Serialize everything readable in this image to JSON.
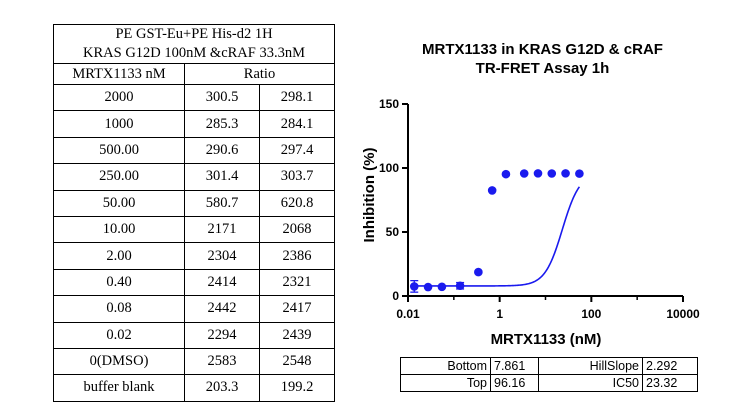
{
  "table": {
    "title_line1": "PE GST-Eu+PE His-d2 1H",
    "title_line2": "KRAS G12D 100nM &cRAF 33.3nM",
    "col_conc_header": "MRTX1133 nM",
    "col_ratio_header": "Ratio",
    "rows": [
      {
        "conc": "2000",
        "r1": "300.5",
        "r2": "298.1"
      },
      {
        "conc": "1000",
        "r1": "285.3",
        "r2": "284.1"
      },
      {
        "conc": "500.00",
        "r1": "290.6",
        "r2": "297.4"
      },
      {
        "conc": "250.00",
        "r1": "301.4",
        "r2": "303.7"
      },
      {
        "conc": "50.00",
        "r1": "580.7",
        "r2": "620.8"
      },
      {
        "conc": "10.00",
        "r1": "2171",
        "r2": "2068"
      },
      {
        "conc": "2.00",
        "r1": "2304",
        "r2": "2386"
      },
      {
        "conc": "0.40",
        "r1": "2414",
        "r2": "2321"
      },
      {
        "conc": "0.08",
        "r1": "2442",
        "r2": "2417"
      },
      {
        "conc": "0.02",
        "r1": "2294",
        "r2": "2439"
      },
      {
        "conc": "0(DMSO)",
        "r1": "2583",
        "r2": "2548"
      },
      {
        "conc": "buffer blank",
        "r1": "203.3",
        "r2": "199.2"
      }
    ]
  },
  "chart_data": {
    "type": "scatter",
    "title_line1": "MRTX1133 in KRAS G12D & cRAF",
    "title_line2": "TR-FRET Assay 1h",
    "xlabel": "MRTX1133 (nM)",
    "ylabel": "Inhibition (%)",
    "xscale": "log",
    "xlim": [
      0.01,
      10000
    ],
    "xticks": [
      0.01,
      1,
      100,
      10000
    ],
    "xtick_labels": [
      "0.01",
      "1",
      "100",
      "10000"
    ],
    "ylim": [
      0,
      150
    ],
    "yticks": [
      0,
      50,
      100,
      150
    ],
    "ytick_labels": [
      "0",
      "50",
      "100",
      "150"
    ],
    "color": "#1a1aee",
    "series": [
      {
        "name": "Inhibition",
        "x": [
          0.0137,
          0.0274,
          0.0549,
          0.137,
          0.343,
          0.686,
          1.37,
          3.43,
          6.86,
          13.7,
          27.4,
          54.9
        ],
        "y": [
          7.5,
          7.0,
          7.2,
          8.0,
          18.7,
          82.5,
          95.2,
          95.7,
          95.8,
          95.7,
          95.8,
          95.6
        ],
        "err": [
          4.5,
          0,
          0,
          2.5,
          0,
          0,
          0,
          0,
          0,
          0,
          0,
          0
        ]
      }
    ],
    "fit": {
      "bottom": 7.861,
      "top": 96.16,
      "ic50": 23.32,
      "hillslope": 2.292
    }
  },
  "params": {
    "rows": [
      {
        "name1": "Bottom",
        "val1": "7.861",
        "name2": "HillSlope",
        "val2": "2.292"
      },
      {
        "name1": "Top",
        "val1": "96.16",
        "name2": "IC50",
        "val2": "23.32"
      }
    ]
  }
}
